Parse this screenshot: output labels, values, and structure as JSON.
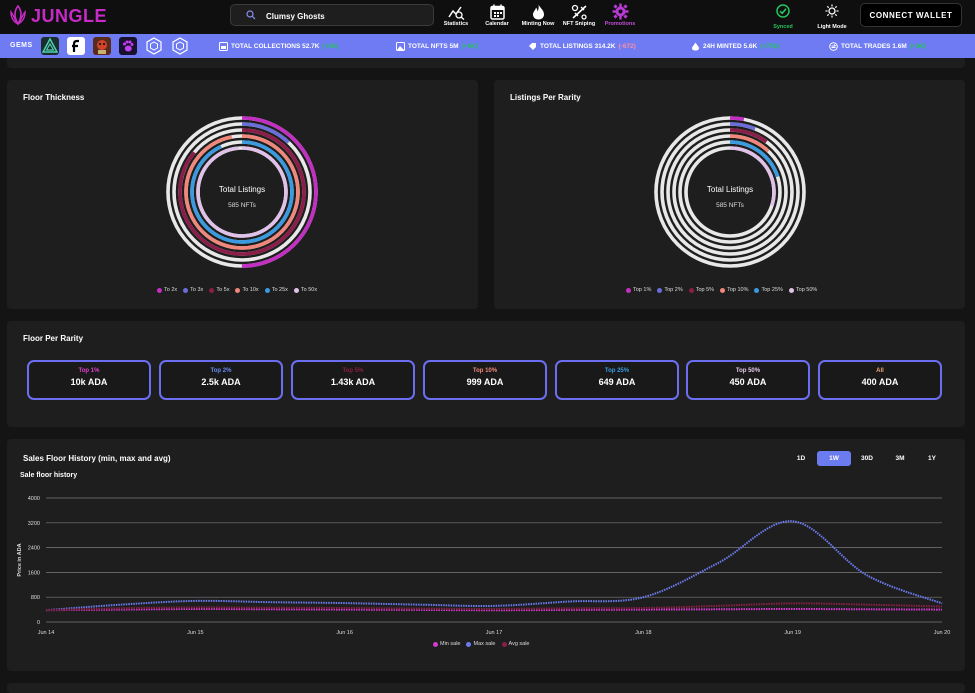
{
  "brand": {
    "name": "JUNGLE",
    "color": "#c62bc6"
  },
  "search": {
    "value": "Clumsy Ghosts"
  },
  "nav": [
    {
      "label": "Statistics",
      "icon": "statistics-icon"
    },
    {
      "label": "Calendar",
      "icon": "calendar-icon"
    },
    {
      "label": "Minting Now",
      "icon": "flame-icon"
    },
    {
      "label": "NFT Sniping",
      "icon": "sniping-icon"
    },
    {
      "label": "Promotions",
      "icon": "promotions-icon"
    }
  ],
  "status": {
    "synced": "Synced",
    "light_mode": "Light Mode"
  },
  "connect_label": "CONNECT WALLET",
  "stats_bar": {
    "gems_label": "GEMS",
    "items": [
      {
        "label": "TOTAL COLLECTIONS 52.7K",
        "change": "(+36)",
        "trend": "up"
      },
      {
        "label": "TOTAL NFTS 5M",
        "change": "(+6K)",
        "trend": "up"
      },
      {
        "label": "TOTAL LISTINGS 314.2K",
        "change": "(-672)",
        "trend": "down"
      },
      {
        "label": "24H MINTED 5.6K",
        "change": "(+753)",
        "trend": "up"
      },
      {
        "label": "TOTAL TRADES 1.6M",
        "change": "(+3K)",
        "trend": "up"
      }
    ]
  },
  "floor_thickness": {
    "title": "Floor Thickness",
    "center_label": "Total Listings",
    "center_value": "585 NFTs",
    "legend": [
      {
        "label": "To 2x",
        "color": "#c22fc2"
      },
      {
        "label": "To 3x",
        "color": "#6a6ed8"
      },
      {
        "label": "To 5x",
        "color": "#8a1e48"
      },
      {
        "label": "To 10x",
        "color": "#f0877a"
      },
      {
        "label": "To 25x",
        "color": "#3a9ae0"
      },
      {
        "label": "To 50x",
        "color": "#e0c2e8"
      }
    ],
    "ring_fractions": [
      0.5,
      0.12,
      0.86,
      0.97,
      0.93,
      0.985
    ]
  },
  "listings_per_rarity": {
    "title": "Listings Per Rarity",
    "center_label": "Total Listings",
    "center_value": "585 NFTs",
    "legend": [
      {
        "label": "Top 1%",
        "color": "#c22fc2"
      },
      {
        "label": "Top 2%",
        "color": "#6a6ed8"
      },
      {
        "label": "Top 5%",
        "color": "#8a1e48"
      },
      {
        "label": "Top 10%",
        "color": "#f0877a"
      },
      {
        "label": "Top 25%",
        "color": "#3a9ae0"
      },
      {
        "label": "Top 50%",
        "color": "#e0c2e8"
      }
    ],
    "ring_fractions": [
      0.03,
      0.06,
      0.1,
      0.12,
      0.2,
      0.3
    ]
  },
  "floor_per_rarity": {
    "title": "Floor Per Rarity",
    "items": [
      {
        "label": "Top 1%",
        "value": "10k ADA",
        "color": "#e040d0"
      },
      {
        "label": "Top 2%",
        "value": "2.5k ADA",
        "color": "#6a8af0"
      },
      {
        "label": "Top 5%",
        "value": "1.43k ADA",
        "color": "#8a1e48"
      },
      {
        "label": "Top 10%",
        "value": "999 ADA",
        "color": "#f08a7a"
      },
      {
        "label": "Top 25%",
        "value": "649 ADA",
        "color": "#3a9ae0"
      },
      {
        "label": "Top 50%",
        "value": "450 ADA",
        "color": "#e8c8ee"
      },
      {
        "label": "All",
        "value": "400 ADA",
        "color": "#f0a878"
      }
    ]
  },
  "sales_history": {
    "title": "Sales Floor History (min, max and avg)",
    "ranges": [
      "1D",
      "1W",
      "30D",
      "3M",
      "1Y"
    ],
    "active_range": "1W"
  },
  "chart_data": {
    "type": "line",
    "title": "Sale floor history",
    "xlabel": "",
    "ylabel": "Price in ADA",
    "x_ticks": [
      "Jun 14",
      "Jun 15",
      "Jun 16",
      "Jun 17",
      "Jun 18",
      "Jun 19",
      "Jun 20"
    ],
    "y_ticks": [
      0,
      800,
      1600,
      2400,
      3200,
      4000
    ],
    "ylim": [
      0,
      4000
    ],
    "x": [
      0,
      0.5,
      1,
      1.5,
      2,
      2.5,
      3,
      3.5,
      4,
      4.5,
      5,
      5.5,
      6
    ],
    "series": [
      {
        "name": "Min sale",
        "color": "#d63ad0",
        "values": [
          380,
          400,
          420,
          410,
          400,
          390,
          380,
          390,
          400,
          410,
          420,
          410,
          400
        ]
      },
      {
        "name": "Max sale",
        "color": "#6a7cf0",
        "values": [
          380,
          560,
          680,
          640,
          610,
          560,
          520,
          660,
          800,
          1900,
          3250,
          1500,
          600
        ]
      },
      {
        "name": "Avg sale",
        "color": "#8a1e48",
        "values": [
          380,
          440,
          470,
          460,
          450,
          430,
          420,
          440,
          450,
          520,
          600,
          560,
          500
        ]
      }
    ],
    "legend": "bottom",
    "grid": true
  }
}
